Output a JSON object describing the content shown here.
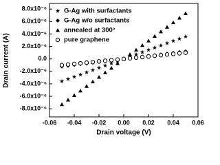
{
  "chart_data": {
    "type": "scatter",
    "x_label": "Drain voltage (V)",
    "y_label": "Drain current (A)",
    "x": [
      -0.05,
      -0.045,
      -0.04,
      -0.035,
      -0.03,
      -0.025,
      -0.02,
      -0.015,
      -0.01,
      -0.005,
      0,
      0.005,
      0.01,
      0.015,
      0.02,
      0.025,
      0.03,
      0.035,
      0.04,
      0.045,
      0.05
    ],
    "series": [
      {
        "name": "G-Ag with surfactants",
        "color": "#000000",
        "marker": "star",
        "values": [
          -3.6e-06,
          -3.24e-06,
          -2.88e-06,
          -2.52e-06,
          -2.16e-06,
          -1.8e-06,
          -1.44e-06,
          -1.08e-06,
          -7.2e-07,
          -3.6e-07,
          0,
          3.6e-07,
          7.2e-07,
          1.08e-06,
          1.44e-06,
          1.8e-06,
          2.16e-06,
          2.52e-06,
          2.88e-06,
          3.24e-06,
          3.6e-06
        ]
      },
      {
        "name": "G-Ag w/o surfactants",
        "color": "#000000",
        "marker": "diamond",
        "values": [
          -1.2e-06,
          -1.08e-06,
          -9.6e-07,
          -8.4e-07,
          -7.2e-07,
          -6e-07,
          -4.8e-07,
          -3.6e-07,
          -2.4e-07,
          -1.2e-07,
          0,
          1.2e-07,
          2.4e-07,
          3.6e-07,
          4.8e-07,
          6e-07,
          7.2e-07,
          8.4e-07,
          9.6e-07,
          1.08e-06,
          1.2e-06
        ]
      },
      {
        "name": "annealed at 300°",
        "color": "#000000",
        "marker": "triangle",
        "values": [
          -7.3e-06,
          -6.57e-06,
          -5.84e-06,
          -5.11e-06,
          -4.38e-06,
          -3.65e-06,
          -2.92e-06,
          -2.19e-06,
          -1.46e-06,
          -7.3e-07,
          0,
          7.3e-07,
          1.46e-06,
          2.19e-06,
          2.92e-06,
          3.65e-06,
          4.38e-06,
          5.11e-06,
          5.84e-06,
          6.57e-06,
          7.3e-06
        ]
      },
      {
        "name": "pure graphene",
        "color": "#000000",
        "marker": "circle",
        "values": [
          -1e-06,
          -9e-07,
          -8e-07,
          -7e-07,
          -6e-07,
          -5e-07,
          -4e-07,
          -3e-07,
          -2e-07,
          -1e-07,
          0,
          1e-07,
          2e-07,
          3e-07,
          4e-07,
          5e-07,
          6e-07,
          7e-07,
          8e-07,
          9e-07,
          1e-06
        ]
      }
    ],
    "xlim": [
      -0.06,
      0.06
    ],
    "xticks": [
      -0.06,
      -0.04,
      -0.02,
      {
        "value": 0,
        "label": "0.00"
      },
      0.02,
      0.04,
      0.06
    ],
    "ylim": [
      -9.3e-06,
      8.9e-06
    ],
    "yticks": [
      {
        "value": -8e-06,
        "label": "-8.0x10⁻⁶"
      },
      {
        "value": -6e-06,
        "label": "-6.0x10⁻⁶"
      },
      {
        "value": -4e-06,
        "label": "-4.0x10⁻⁶"
      },
      {
        "value": -2e-06,
        "label": "-2.0x10⁻⁶"
      },
      {
        "value": 0,
        "label": "0.0"
      },
      {
        "value": 2e-06,
        "label": "2.0x10⁻⁶"
      },
      {
        "value": 4e-06,
        "label": "4.0x10⁻⁶"
      },
      {
        "value": 6e-06,
        "label": "6.0x10⁻⁶"
      },
      {
        "value": 8e-06,
        "label": "8.0x10⁻⁶"
      }
    ],
    "grid": false,
    "legend": "upper left"
  }
}
